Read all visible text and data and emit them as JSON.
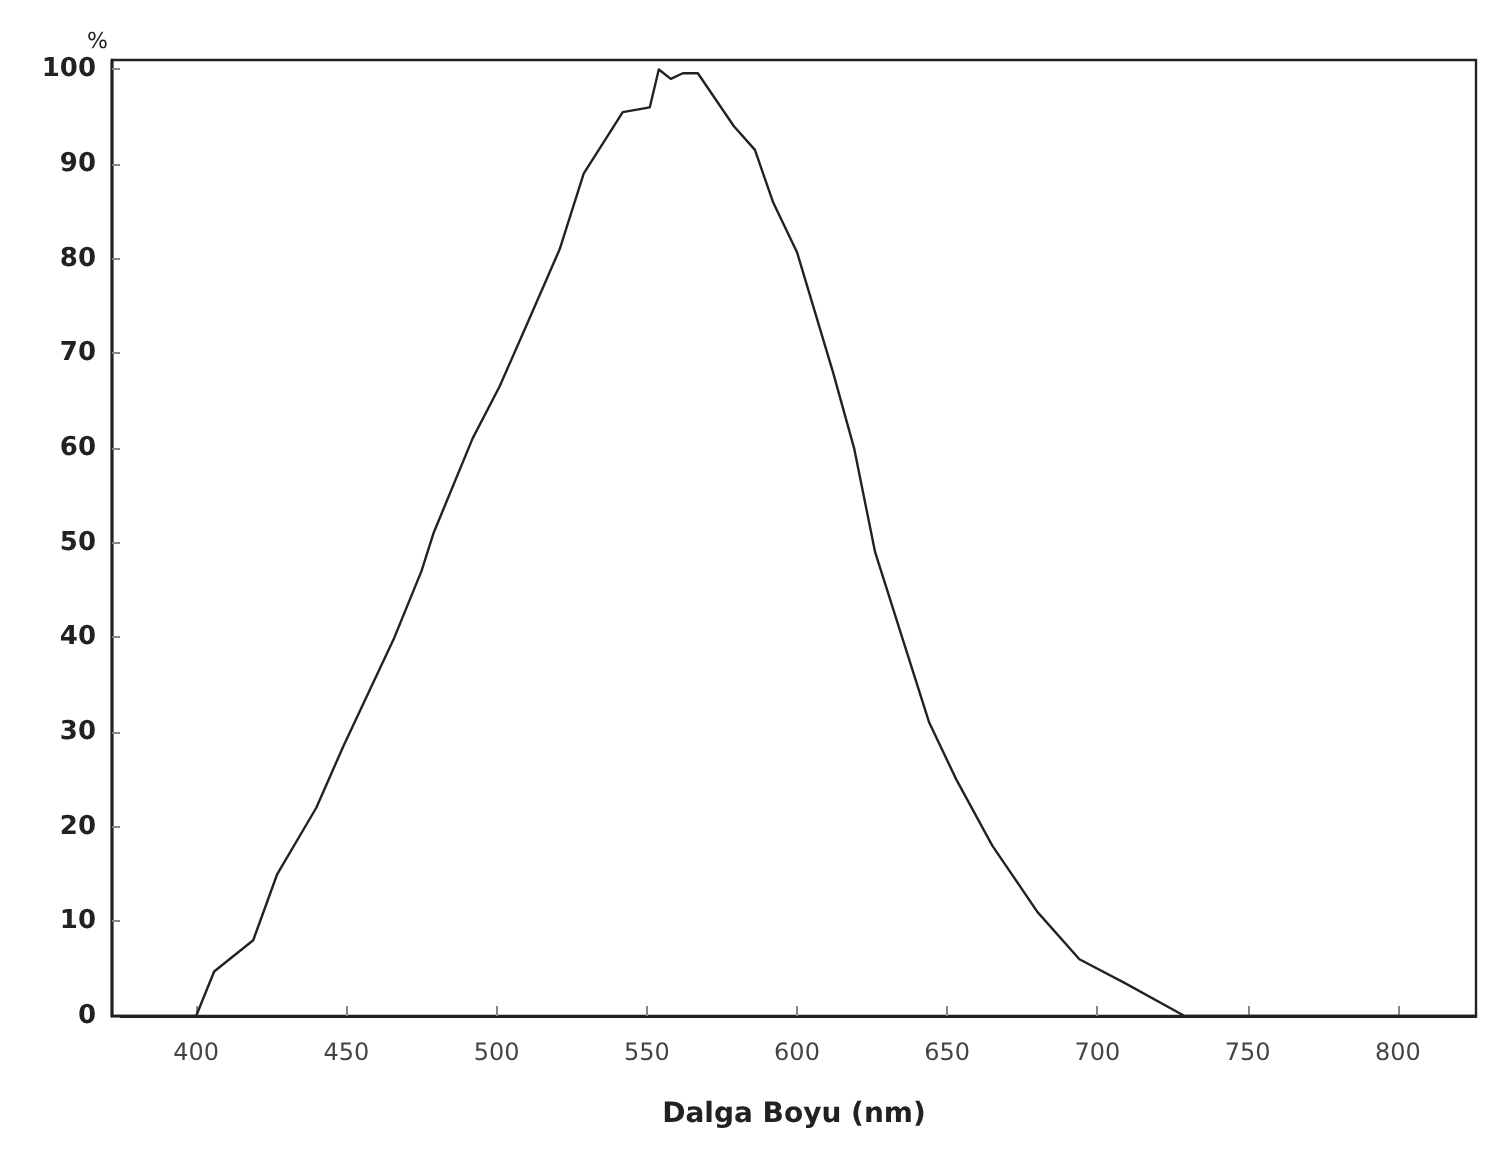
{
  "chart_data": {
    "type": "line",
    "xlabel": "Dalga Boyu (nm)",
    "ylabel": "%",
    "xlim": [
      372,
      826
    ],
    "ylim": [
      0,
      101
    ],
    "xticks": [
      400,
      450,
      500,
      550,
      600,
      650,
      700,
      750,
      800
    ],
    "yticks": [
      0,
      10,
      20,
      30,
      40,
      50,
      60,
      70,
      80,
      90,
      100
    ],
    "grid": false,
    "marker": "none",
    "line_style": "solid",
    "series": [
      {
        "color": "#222222",
        "x": [
          372,
          400,
          406,
          419,
          427,
          440,
          449,
          466,
          475,
          479,
          492,
          501,
          510,
          521,
          529,
          542,
          551,
          554,
          558,
          562,
          567,
          579,
          586,
          592,
          600,
          612,
          619,
          626,
          636,
          644,
          653,
          665,
          680,
          694,
          709,
          729,
          826
        ],
        "values": [
          0,
          0,
          4.7,
          8,
          15,
          22,
          28.5,
          40,
          47,
          51,
          61,
          66.5,
          73,
          81,
          89,
          95.5,
          96,
          100,
          99,
          99.6,
          99.6,
          94,
          91.5,
          86,
          80.7,
          68,
          60,
          49,
          39,
          31,
          25,
          18,
          11,
          6,
          3.5,
          0,
          0
        ]
      }
    ]
  }
}
